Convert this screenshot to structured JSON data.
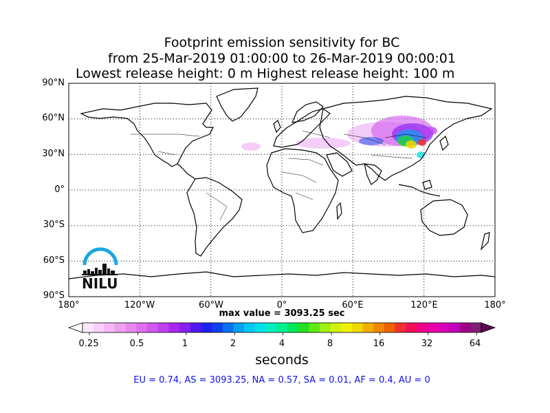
{
  "title": {
    "line1": "Footprint emission sensitivity for BC",
    "line2": "from 25-Mar-2019 01:00:00 to 26-Mar-2019 00:00:01",
    "line3": "Lowest release height: 0 m       Highest release height: 100 m"
  },
  "map": {
    "lat_labels": [
      "90°N",
      "60°N",
      "30°N",
      "0°",
      "30°S",
      "60°S",
      "90°S"
    ],
    "lon_labels": [
      "180°",
      "120°W",
      "60°W",
      "0°",
      "60°E",
      "120°E",
      "180°"
    ],
    "projection": "equirectangular",
    "grid": "dotted"
  },
  "logo": {
    "text": "NILU",
    "color": "#19a8e0"
  },
  "max_value": "max value = 3093.25 sec",
  "colorbar": {
    "labels": [
      "0.25",
      "0.5",
      "1",
      "2",
      "4",
      "8",
      "16",
      "32",
      "64"
    ],
    "title": "seconds",
    "colors": [
      "#ffe8ff",
      "#fbd0fb",
      "#f5b8f5",
      "#eea0ee",
      "#e888ee",
      "#de70ee",
      "#d058ee",
      "#c040ee",
      "#a828ee",
      "#8820ee",
      "#5018ee",
      "#2020ee",
      "#1040f0",
      "#0a70f2",
      "#08a0f4",
      "#06c8f6",
      "#00e0e8",
      "#00f0c0",
      "#00f090",
      "#00e860",
      "#20e020",
      "#60e810",
      "#a0f010",
      "#d0f010",
      "#f0f000",
      "#f0d800",
      "#f0b000",
      "#f08800",
      "#f06000",
      "#f03030",
      "#f0105a",
      "#f00088",
      "#e800a8",
      "#d800b8",
      "#c000b8",
      "#a0008a",
      "#802070"
    ]
  },
  "stats": "EU = 0.74,  AS = 3093.25,  NA = 0.57,  SA = 0.01,  AF = 0.4,  AU = 0"
}
